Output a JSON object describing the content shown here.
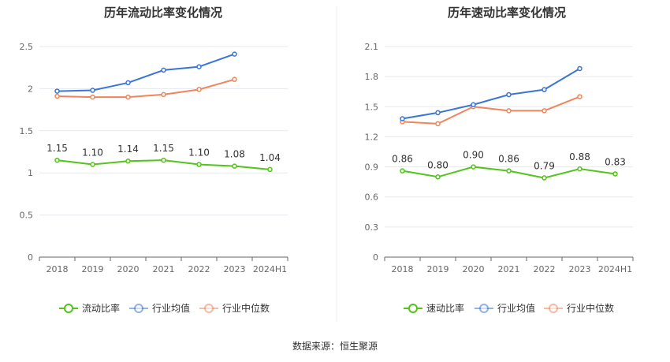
{
  "colors": {
    "ratio": "#52c41a",
    "industry_avg": "#3a74d6",
    "industry_median": "#f0845a",
    "grid": "#e6e8f0",
    "axis": "#666666"
  },
  "source": "数据来源：恒生聚源",
  "chart_data": [
    {
      "type": "line",
      "title": "历年流动比率变化情况",
      "categories": [
        "2018",
        "2019",
        "2020",
        "2021",
        "2022",
        "2023",
        "2024H1"
      ],
      "ylim": [
        0,
        2.5
      ],
      "yticks": [
        0,
        0.5,
        1,
        1.5,
        2,
        2.5
      ],
      "ytick_labels": [
        "0",
        "0.5",
        "1",
        "1.5",
        "2",
        "2.5"
      ],
      "grid": true,
      "legend_position": "bottom",
      "series": [
        {
          "name": "流动比率",
          "color_key": "ratio",
          "values": [
            1.15,
            1.1,
            1.14,
            1.15,
            1.1,
            1.08,
            1.04
          ],
          "labels": [
            "1.15",
            "1.10",
            "1.14",
            "1.15",
            "1.10",
            "1.08",
            "1.04"
          ]
        },
        {
          "name": "行业均值",
          "color_key": "industry_avg",
          "values": [
            1.97,
            1.98,
            2.07,
            2.22,
            2.26,
            2.41,
            null
          ]
        },
        {
          "name": "行业中位数",
          "color_key": "industry_median",
          "values": [
            1.91,
            1.9,
            1.9,
            1.93,
            1.99,
            2.11,
            null
          ]
        }
      ]
    },
    {
      "type": "line",
      "title": "历年速动比率变化情况",
      "categories": [
        "2018",
        "2019",
        "2020",
        "2021",
        "2022",
        "2023",
        "2024H1"
      ],
      "ylim": [
        0,
        2.1
      ],
      "yticks": [
        0,
        0.3,
        0.6,
        0.9,
        1.2,
        1.5,
        1.8,
        2.1
      ],
      "ytick_labels": [
        "0",
        "0.3",
        "0.6",
        "0.9",
        "1.2",
        "1.5",
        "1.8",
        "2.1"
      ],
      "grid": true,
      "legend_position": "bottom",
      "series": [
        {
          "name": "速动比率",
          "color_key": "ratio",
          "values": [
            0.86,
            0.8,
            0.9,
            0.86,
            0.79,
            0.88,
            0.83
          ],
          "labels": [
            "0.86",
            "0.80",
            "0.90",
            "0.86",
            "0.79",
            "0.88",
            "0.83"
          ]
        },
        {
          "name": "行业均值",
          "color_key": "industry_avg",
          "values": [
            1.38,
            1.44,
            1.52,
            1.62,
            1.67,
            1.88,
            null
          ]
        },
        {
          "name": "行业中位数",
          "color_key": "industry_median",
          "values": [
            1.35,
            1.33,
            1.5,
            1.46,
            1.46,
            1.6,
            null
          ]
        }
      ]
    }
  ]
}
